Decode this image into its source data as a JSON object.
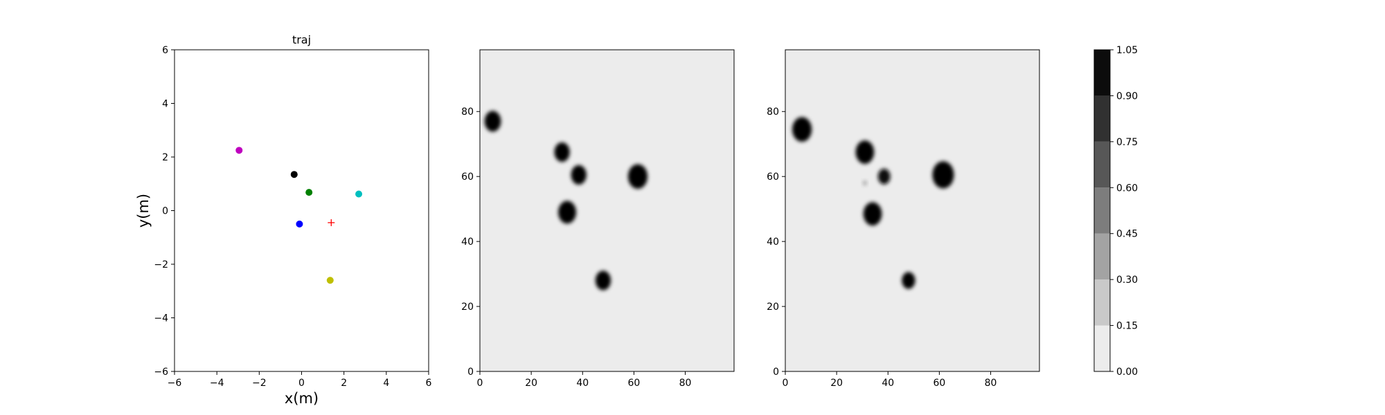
{
  "chart_data": [
    {
      "type": "scatter",
      "title": "traj",
      "xlabel": "x(m)",
      "ylabel": "y(m)",
      "xlim": [
        -6,
        6
      ],
      "ylim": [
        -6,
        6
      ],
      "xticks": [
        -6,
        -4,
        -2,
        0,
        2,
        4,
        6
      ],
      "yticks": [
        -6,
        -4,
        -2,
        0,
        2,
        4,
        6
      ],
      "grid": false,
      "points": [
        {
          "x": -2.95,
          "y": 2.25,
          "color": "#bf00bf",
          "marker": "circle"
        },
        {
          "x": -0.35,
          "y": 1.35,
          "color": "#000000",
          "marker": "circle"
        },
        {
          "x": 0.35,
          "y": 0.68,
          "color": "#008000",
          "marker": "circle"
        },
        {
          "x": 2.7,
          "y": 0.62,
          "color": "#00bfbf",
          "marker": "circle"
        },
        {
          "x": -0.1,
          "y": -0.5,
          "color": "#0000ff",
          "marker": "circle"
        },
        {
          "x": 1.4,
          "y": -0.45,
          "color": "#ff0000",
          "marker": "plus"
        },
        {
          "x": 1.35,
          "y": -2.6,
          "color": "#bfbf00",
          "marker": "circle"
        }
      ]
    },
    {
      "type": "heatmap",
      "xlim": [
        0,
        99
      ],
      "ylim": [
        0,
        99
      ],
      "xticks": [
        0,
        20,
        40,
        60,
        80
      ],
      "yticks": [
        0,
        20,
        40,
        60,
        80
      ],
      "blobs": [
        {
          "x": 5,
          "y": 77,
          "r": 3.2,
          "level": 1.0
        },
        {
          "x": 32,
          "y": 67.5,
          "r": 3.0,
          "level": 1.0
        },
        {
          "x": 38.5,
          "y": 60.5,
          "r": 3.0,
          "level": 1.0
        },
        {
          "x": 34,
          "y": 49,
          "r": 3.5,
          "level": 1.0
        },
        {
          "x": 61.5,
          "y": 60,
          "r": 3.8,
          "level": 1.0
        },
        {
          "x": 48,
          "y": 28,
          "r": 3.0,
          "level": 1.0
        }
      ]
    },
    {
      "type": "heatmap",
      "xlim": [
        0,
        99
      ],
      "ylim": [
        0,
        99
      ],
      "xticks": [
        0,
        20,
        40,
        60,
        80
      ],
      "yticks": [
        0,
        20,
        40,
        60,
        80
      ],
      "blobs": [
        {
          "x": 6.5,
          "y": 74.5,
          "r": 3.8,
          "level": 1.0
        },
        {
          "x": 31,
          "y": 67.5,
          "r": 3.6,
          "level": 1.0
        },
        {
          "x": 38.5,
          "y": 60,
          "r": 2.4,
          "level": 0.95
        },
        {
          "x": 34,
          "y": 48.5,
          "r": 3.6,
          "level": 1.0
        },
        {
          "x": 61.5,
          "y": 60.5,
          "r": 4.2,
          "level": 1.0
        },
        {
          "x": 48,
          "y": 28,
          "r": 2.6,
          "level": 1.0
        },
        {
          "x": 31,
          "y": 58,
          "r": 0.8,
          "level": 0.3
        }
      ]
    }
  ],
  "colorbar": {
    "levels": [
      "0.00",
      "0.15",
      "0.30",
      "0.45",
      "0.60",
      "0.75",
      "0.90",
      "1.05"
    ],
    "colors": [
      "#ececec",
      "#c9c9c9",
      "#a3a3a3",
      "#7d7d7d",
      "#575757",
      "#313131",
      "#0c0c0c"
    ]
  },
  "heatmap_background": "#ececec"
}
